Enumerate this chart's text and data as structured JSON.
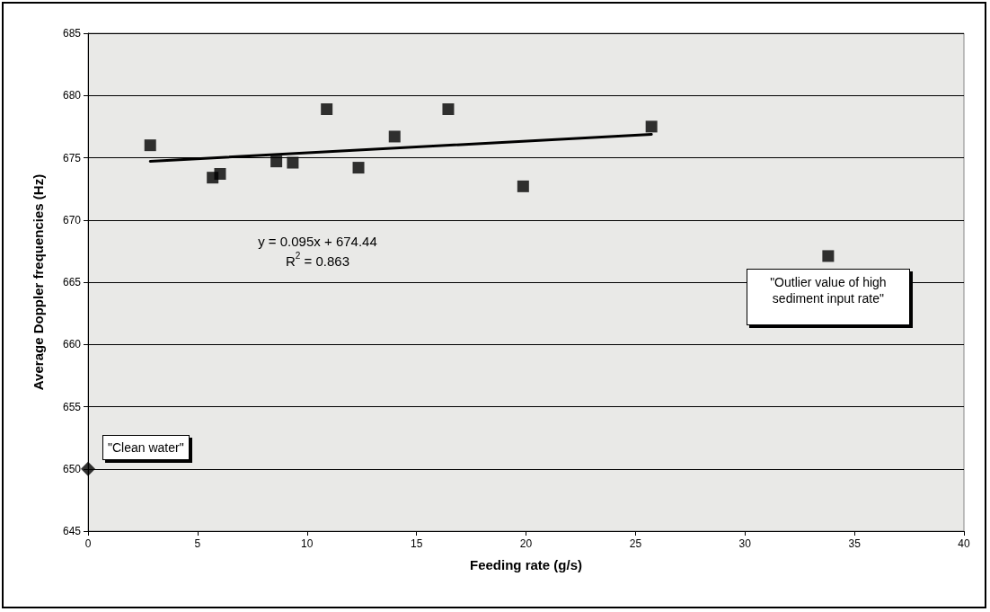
{
  "chart_data": {
    "type": "scatter",
    "xlabel": "Feeding rate (g/s)",
    "ylabel": "Average Doppler frequencies (Hz)",
    "xlim": [
      0,
      40
    ],
    "xticks": [
      0,
      5,
      10,
      15,
      20,
      25,
      30,
      35,
      40
    ],
    "ylim": [
      645,
      685
    ],
    "yticks": [
      645,
      650,
      655,
      660,
      665,
      670,
      675,
      680,
      685
    ],
    "grid": "y",
    "series": [
      {
        "marker": "square",
        "color": "#000000",
        "x": [
          2.84,
          5.69,
          6.03,
          8.6,
          9.35,
          10.9,
          12.35,
          14.0,
          16.45,
          19.87,
          25.73,
          33.8
        ],
        "values": [
          676.0,
          673.4,
          673.7,
          674.7,
          674.6,
          678.9,
          674.2,
          676.7,
          678.9,
          672.7,
          677.5,
          667.1
        ]
      },
      {
        "marker": "diamond",
        "color": "#000000",
        "x": [
          0
        ],
        "values": [
          650
        ]
      },
      {
        "type": "line",
        "marker": "none",
        "line_style": "solid",
        "color": "#000000",
        "x": [
          2.84,
          25.73
        ],
        "values": [
          674.71,
          676.88
        ]
      }
    ],
    "annotations": [
      "y = 0.095x + 674.44\nR$^{2}$ = 0.863",
      {
        "text": "\"Clean water\"",
        "x": 0,
        "y": 650
      },
      {
        "text": "\"Outlier value of high sediment input rate\"",
        "x": 33.8,
        "y": 667.1
      }
    ]
  }
}
